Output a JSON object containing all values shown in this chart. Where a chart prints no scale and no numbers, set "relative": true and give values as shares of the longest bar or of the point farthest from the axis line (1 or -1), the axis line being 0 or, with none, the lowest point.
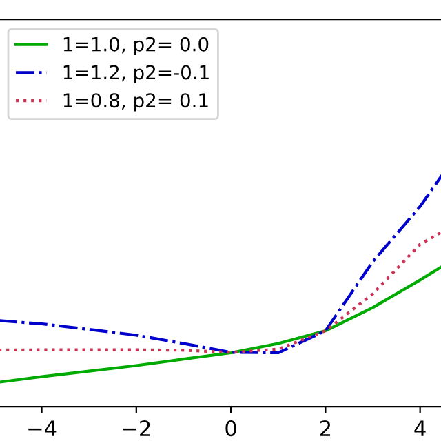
{
  "chart_data": {
    "type": "line",
    "relative": true,
    "x": [
      -4.91,
      -4,
      -3,
      -2,
      -1,
      0,
      1,
      2,
      3,
      4,
      4.47
    ],
    "xlim": [
      -4.91,
      4.47
    ],
    "xticks": [
      {
        "value": -4,
        "label": "−4"
      },
      {
        "value": -2,
        "label": "−2"
      },
      0,
      2,
      4
    ],
    "tick_labels": "x",
    "legend": "top left",
    "grid": false,
    "marker": "none",
    "series": [
      {
        "name": "1=1.0, p2= 0.0",
        "color": "#00aa00",
        "line_style": "solid",
        "values": [
          0.105,
          0.129,
          0.153,
          0.177,
          0.205,
          0.232,
          0.272,
          0.327,
          0.427,
          0.546,
          0.605
        ]
      },
      {
        "name": "1=1.2, p2=-0.1",
        "color": "#0000cc",
        "line_style": "dashed",
        "values": [
          0.371,
          0.357,
          0.333,
          0.308,
          0.272,
          0.234,
          0.232,
          0.327,
          0.625,
          0.863,
          1
        ]
      },
      {
        "name": "1=0.8, p2= 0.1",
        "color": "#cc3355",
        "line_style": "dotted",
        "values": [
          0.244,
          0.245,
          0.245,
          0.245,
          0.243,
          0.234,
          0.248,
          0.327,
          0.486,
          0.7,
          0.754
        ]
      }
    ]
  }
}
